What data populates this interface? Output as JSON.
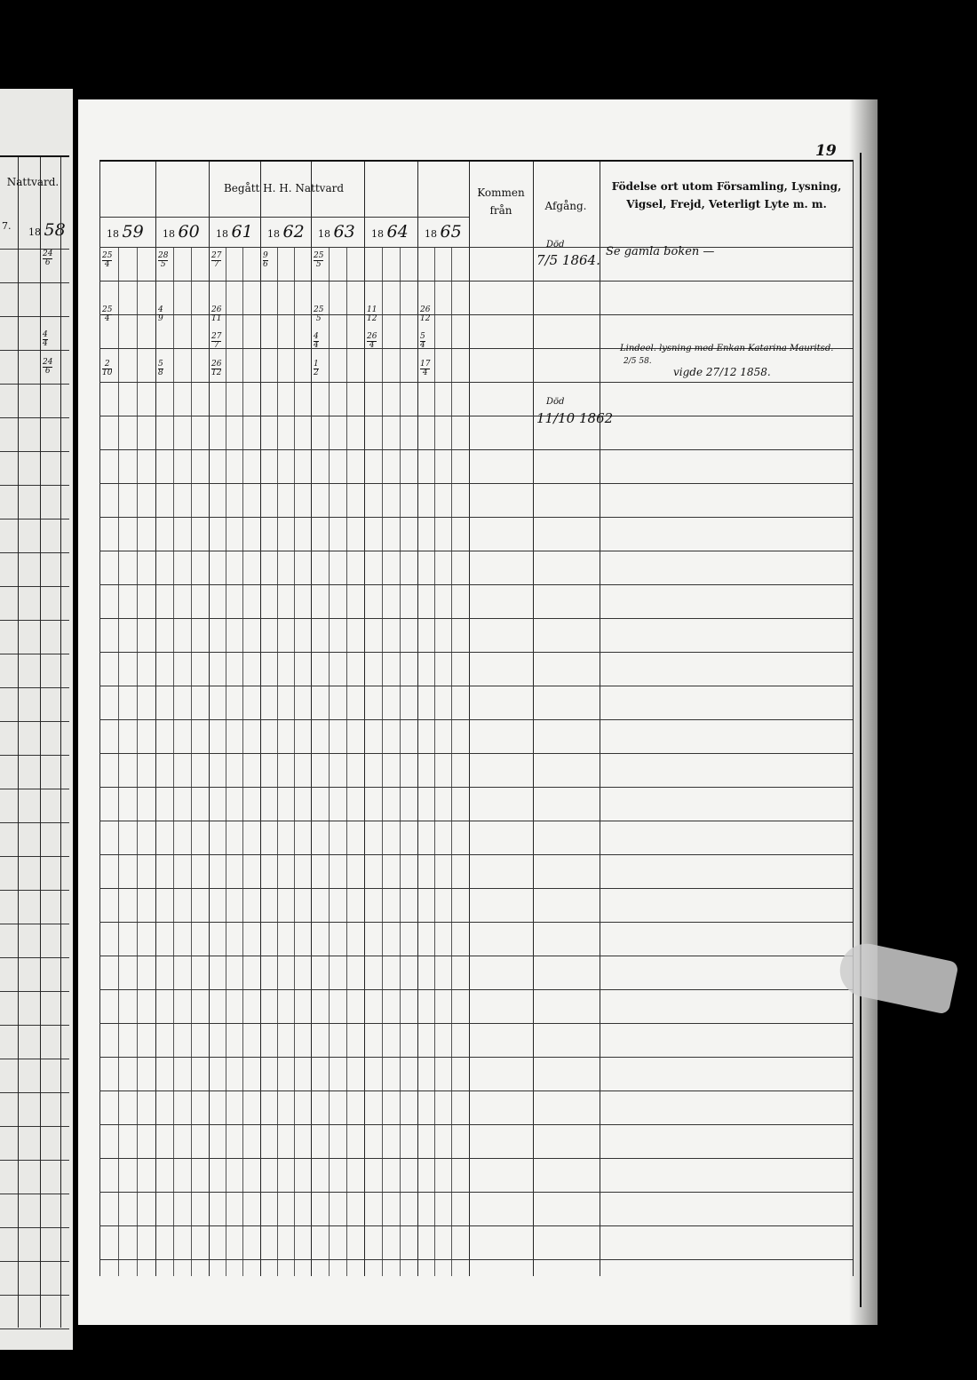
{
  "left_page": {
    "header_fragment": "Nattvard.",
    "year_fragment": "7.",
    "year_prefix": "18",
    "year_suffix": "58",
    "entries": [
      {
        "row": 0,
        "num": "24",
        "den": "6"
      },
      {
        "row": 3,
        "num": "4",
        "den": "4"
      },
      {
        "row": 4,
        "num": "24",
        "den": "6"
      }
    ]
  },
  "page_number": "19",
  "table": {
    "communion_title": "Begått H. H. Nattvard",
    "years": [
      {
        "prefix": "18",
        "suffix": "59"
      },
      {
        "prefix": "18",
        "suffix": "60"
      },
      {
        "prefix": "18",
        "suffix": "61"
      },
      {
        "prefix": "18",
        "suffix": "62"
      },
      {
        "prefix": "18",
        "suffix": "63"
      },
      {
        "prefix": "18",
        "suffix": "64"
      },
      {
        "prefix": "18",
        "suffix": "65"
      }
    ],
    "col_kommen": "Kommen från",
    "col_afgang": "Afgång.",
    "col_fodelse": "Födelse ort utom Församling, Lysning, Vigsel, Frejd, Veterligt Lyte m. m."
  },
  "communion_dates": [
    {
      "year": 0,
      "row": 0,
      "num": "25",
      "den": "4"
    },
    {
      "year": 1,
      "row": 0,
      "num": "28",
      "den": "5"
    },
    {
      "year": 2,
      "row": 0,
      "num": "27",
      "den": "7"
    },
    {
      "year": 3,
      "row": 0,
      "num": "9",
      "den": "6"
    },
    {
      "year": 4,
      "row": 0,
      "num": "25",
      "den": "5"
    },
    {
      "year": 0,
      "row": 2,
      "num": "25",
      "den": "4"
    },
    {
      "year": 1,
      "row": 2,
      "num": "4",
      "den": "9"
    },
    {
      "year": 2,
      "row": 2,
      "num": "26",
      "den": "11"
    },
    {
      "year": 4,
      "row": 2,
      "num": "25",
      "den": "5"
    },
    {
      "year": 5,
      "row": 2,
      "num": "11",
      "den": "12"
    },
    {
      "year": 6,
      "row": 2,
      "num": "26",
      "den": "12"
    },
    {
      "year": 2,
      "row": 3,
      "num": "27",
      "den": "7"
    },
    {
      "year": 4,
      "row": 3,
      "num": "4",
      "den": "4"
    },
    {
      "year": 5,
      "row": 3,
      "num": "26",
      "den": "4"
    },
    {
      "year": 6,
      "row": 3,
      "num": "5",
      "den": "4"
    },
    {
      "year": 0,
      "row": 4,
      "num": "2",
      "den": "10"
    },
    {
      "year": 1,
      "row": 4,
      "num": "5",
      "den": "8"
    },
    {
      "year": 2,
      "row": 4,
      "num": "26",
      "den": "12"
    },
    {
      "year": 4,
      "row": 4,
      "num": "1",
      "den": "2"
    },
    {
      "year": 6,
      "row": 4,
      "num": "17",
      "den": "4"
    }
  ],
  "afgang_entries": [
    {
      "label": "Död",
      "date": "7/5 1864."
    },
    {
      "label": "Död",
      "date": "11/10 1862"
    }
  ],
  "notes": [
    "Se gamla boken —",
    "Lindeel. lysning med Enkan Katarina Mauritsd.",
    "2/5 58.",
    "vigde 27/12 1858."
  ]
}
